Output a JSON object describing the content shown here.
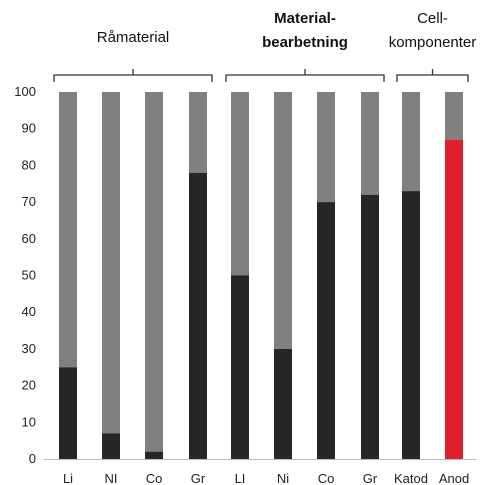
{
  "chart_data": {
    "type": "bar",
    "stacked": true,
    "ylim": [
      0,
      100
    ],
    "yticks": [
      0,
      10,
      20,
      30,
      40,
      50,
      60,
      70,
      80,
      90,
      100
    ],
    "grid": false,
    "groups": [
      {
        "label_lines": [
          "Råmaterial"
        ],
        "bold": false,
        "categories": [
          "Li",
          "NI",
          "Co",
          "Gr"
        ]
      },
      {
        "label_lines": [
          "Material-",
          "bearbetning"
        ],
        "bold": true,
        "categories": [
          "LI",
          "Ni",
          "Co",
          "Gr"
        ]
      },
      {
        "label_lines": [
          "Cell-",
          "komponenter"
        ],
        "bold": false,
        "categories": [
          "Katod",
          "Anod"
        ]
      }
    ],
    "categories": [
      "Li",
      "NI",
      "Co",
      "Gr",
      "LI",
      "Ni",
      "Co",
      "Gr",
      "Katod",
      "Anod"
    ],
    "values": [
      25,
      7,
      2,
      78,
      50,
      30,
      70,
      72,
      73,
      87
    ],
    "total": 100,
    "colors": {
      "value": "#262626",
      "value_highlight": "#e01f2d",
      "remainder": "#808080",
      "bracket": "#333333",
      "axis": "#bbbbbb"
    },
    "highlight_index": 9
  }
}
